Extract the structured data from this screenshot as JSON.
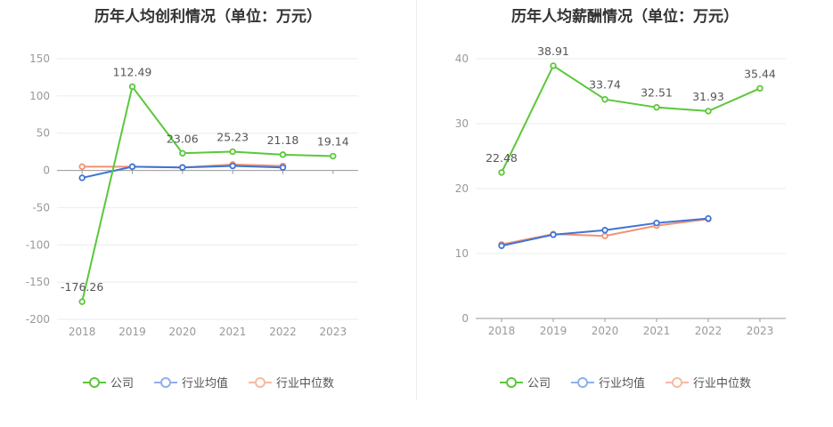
{
  "colors": {
    "company": "#5ac83a",
    "industry_avg": "#3e74d6",
    "industry_median": "#f39371"
  },
  "legend": [
    "公司",
    "行业均值",
    "行业中位数"
  ],
  "chart_data": [
    {
      "type": "line",
      "title": "历年人均创利情况（单位：万元）",
      "categories": [
        "2018",
        "2019",
        "2020",
        "2021",
        "2022",
        "2023"
      ],
      "ylim": [
        -200,
        150
      ],
      "yticks": [
        150,
        100,
        50,
        0,
        -50,
        -100,
        -150,
        -200
      ],
      "grid": true,
      "legend_position": "bottom",
      "series": [
        {
          "name": "公司",
          "values": [
            -176.26,
            112.49,
            23.06,
            25.23,
            21.18,
            19.14
          ],
          "labels": [
            "-176.26",
            "112.49",
            "23.06",
            "25.23",
            "21.18",
            "19.14"
          ]
        },
        {
          "name": "行业均值",
          "values": [
            -10,
            5,
            4,
            6,
            4,
            null
          ]
        },
        {
          "name": "行业中位数",
          "values": [
            5,
            5,
            4,
            8,
            6,
            null
          ]
        }
      ]
    },
    {
      "type": "line",
      "title": "历年人均薪酬情况（单位：万元）",
      "categories": [
        "2018",
        "2019",
        "2020",
        "2021",
        "2022",
        "2023"
      ],
      "ylim": [
        0,
        40
      ],
      "yticks": [
        40,
        30,
        20,
        10,
        0
      ],
      "grid": true,
      "legend_position": "bottom",
      "series": [
        {
          "name": "公司",
          "values": [
            22.48,
            38.91,
            33.74,
            32.51,
            31.93,
            35.44
          ],
          "labels": [
            "22.48",
            "38.91",
            "33.74",
            "32.51",
            "31.93",
            "35.44"
          ]
        },
        {
          "name": "行业均值",
          "values": [
            11.2,
            12.9,
            13.6,
            14.7,
            15.4,
            null
          ]
        },
        {
          "name": "行业中位数",
          "values": [
            11.4,
            13.0,
            12.7,
            14.3,
            15.3,
            null
          ]
        }
      ]
    }
  ]
}
